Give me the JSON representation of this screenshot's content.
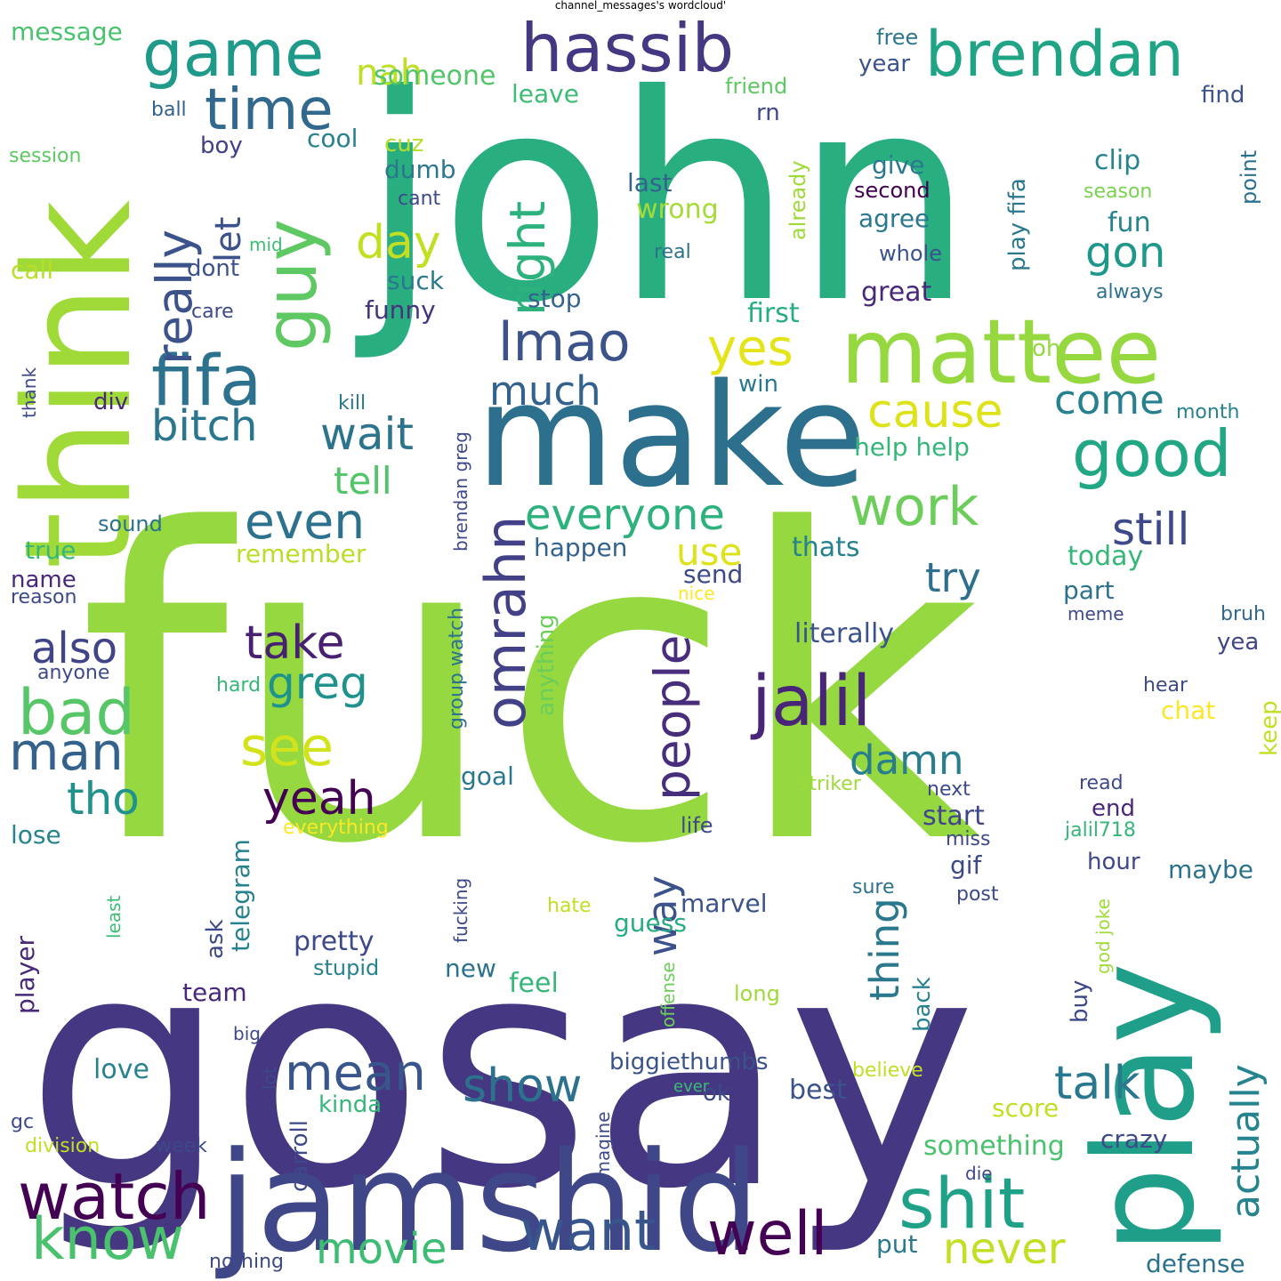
{
  "title": "channel_messages's wordcloud'",
  "words": [
    {
      "text": "fuck",
      "color": "#95d840"
    },
    {
      "text": "gosay",
      "color": "#453781"
    },
    {
      "text": "john",
      "color": "#29af7f"
    },
    {
      "text": "think",
      "color": "#a0da39"
    },
    {
      "text": "make",
      "color": "#2d708e"
    },
    {
      "text": "jamshid",
      "color": "#3f4788"
    },
    {
      "text": "play",
      "color": "#1f9e89"
    },
    {
      "text": "mattee",
      "color": "#95d840"
    },
    {
      "text": "hassib",
      "color": "#453781"
    },
    {
      "text": "brendan",
      "color": "#20a486"
    },
    {
      "text": "game",
      "color": "#1f9a8a"
    },
    {
      "text": "guy",
      "color": "#5ec962"
    },
    {
      "text": "time",
      "color": "#31688e"
    },
    {
      "text": "fifa",
      "color": "#2c728e"
    },
    {
      "text": "jalil",
      "color": "#482576"
    },
    {
      "text": "good",
      "color": "#22a785"
    },
    {
      "text": "watch",
      "color": "#440154"
    },
    {
      "text": "know",
      "color": "#4ac16d"
    },
    {
      "text": "shit",
      "color": "#1fa188"
    },
    {
      "text": "well",
      "color": "#440154"
    },
    {
      "text": "want",
      "color": "#39568c"
    },
    {
      "text": "omrahn",
      "color": "#424086"
    },
    {
      "text": "people",
      "color": "#472d7b"
    },
    {
      "text": "bad",
      "color": "#56c667"
    },
    {
      "text": "man",
      "color": "#33638d"
    },
    {
      "text": "see",
      "color": "#d2e21b"
    },
    {
      "text": "right",
      "color": "#2db27d"
    },
    {
      "text": "lmao",
      "color": "#3b528b"
    },
    {
      "text": "really",
      "color": "#3b528b"
    },
    {
      "text": "work",
      "color": "#6ccd5a"
    },
    {
      "text": "mean",
      "color": "#39568c"
    },
    {
      "text": "even",
      "color": "#2c728e"
    },
    {
      "text": "everyone",
      "color": "#2db27d"
    },
    {
      "text": "cause",
      "color": "#dde318"
    },
    {
      "text": "yes",
      "color": "#e5e419"
    },
    {
      "text": "day",
      "color": "#c2df23"
    },
    {
      "text": "bitch",
      "color": "#2a768e"
    },
    {
      "text": "wait",
      "color": "#2c738e"
    },
    {
      "text": "take",
      "color": "#482071"
    },
    {
      "text": "greg",
      "color": "#20928c"
    },
    {
      "text": "also",
      "color": "#414487"
    },
    {
      "text": "yeah",
      "color": "#440154"
    },
    {
      "text": "tho",
      "color": "#21918c"
    },
    {
      "text": "movie",
      "color": "#3dbc74"
    },
    {
      "text": "show",
      "color": "#2c728e"
    },
    {
      "text": "talk",
      "color": "#2a788e"
    },
    {
      "text": "actually",
      "color": "#25848e"
    },
    {
      "text": "never",
      "color": "#c2df23"
    },
    {
      "text": "still",
      "color": "#3e4989"
    },
    {
      "text": "try",
      "color": "#2e6f8e"
    },
    {
      "text": "damn",
      "color": "#287d8e"
    },
    {
      "text": "come",
      "color": "#27808e"
    },
    {
      "text": "thing",
      "color": "#2a788e"
    },
    {
      "text": "way",
      "color": "#3b528b"
    },
    {
      "text": "much",
      "color": "#33638d"
    },
    {
      "text": "tell",
      "color": "#52c569"
    },
    {
      "text": "use",
      "color": "#dde318"
    },
    {
      "text": "nah",
      "color": "#bddf26"
    },
    {
      "text": "let",
      "color": "#3b528b"
    },
    {
      "text": "gon",
      "color": "#1f988b"
    },
    {
      "text": "message",
      "color": "#4ac16d"
    },
    {
      "text": "someone",
      "color": "#52c569"
    },
    {
      "text": "leave",
      "color": "#3dbc74"
    },
    {
      "text": "year",
      "color": "#3b528b"
    },
    {
      "text": "free",
      "color": "#2a788e"
    },
    {
      "text": "friend",
      "color": "#5ec962"
    },
    {
      "text": "find",
      "color": "#3b528b"
    },
    {
      "text": "rn",
      "color": "#3e4989"
    },
    {
      "text": "ball",
      "color": "#33638d"
    },
    {
      "text": "boy",
      "color": "#424086"
    },
    {
      "text": "cool",
      "color": "#27808e"
    },
    {
      "text": "session",
      "color": "#5ec962"
    },
    {
      "text": "cuz",
      "color": "#b5de2b"
    },
    {
      "text": "dumb",
      "color": "#2a788e"
    },
    {
      "text": "last",
      "color": "#33638d"
    },
    {
      "text": "give",
      "color": "#2a788e"
    },
    {
      "text": "clip",
      "color": "#25848e"
    },
    {
      "text": "cant",
      "color": "#3e4989"
    },
    {
      "text": "second",
      "color": "#440154"
    },
    {
      "text": "season",
      "color": "#7ad151"
    },
    {
      "text": "wrong",
      "color": "#a5db36"
    },
    {
      "text": "agree",
      "color": "#2a788e"
    },
    {
      "text": "fun",
      "color": "#25848e"
    },
    {
      "text": "mid",
      "color": "#3dbc74"
    },
    {
      "text": "dont",
      "color": "#3b528b"
    },
    {
      "text": "real",
      "color": "#2c728e"
    },
    {
      "text": "whole",
      "color": "#3b528b"
    },
    {
      "text": "call",
      "color": "#b8de29"
    },
    {
      "text": "suck",
      "color": "#2a788e"
    },
    {
      "text": "stop",
      "color": "#33638d"
    },
    {
      "text": "great",
      "color": "#482878"
    },
    {
      "text": "always",
      "color": "#2c728e"
    },
    {
      "text": "care",
      "color": "#3e4989"
    },
    {
      "text": "funny",
      "color": "#46337e"
    },
    {
      "text": "first",
      "color": "#27ad81"
    },
    {
      "text": "oh",
      "color": "#95d840"
    },
    {
      "text": "thank",
      "color": "#3e4989"
    },
    {
      "text": "kill",
      "color": "#2a788e"
    },
    {
      "text": "win",
      "color": "#2a788e"
    },
    {
      "text": "div",
      "color": "#482878"
    },
    {
      "text": "month",
      "color": "#26828e"
    },
    {
      "text": "help help",
      "color": "#35b779"
    },
    {
      "text": "sound",
      "color": "#2c728e"
    },
    {
      "text": "true",
      "color": "#35b779"
    },
    {
      "text": "remember",
      "color": "#b8de29"
    },
    {
      "text": "happen",
      "color": "#33638d"
    },
    {
      "text": "thats",
      "color": "#26828e"
    },
    {
      "text": "today",
      "color": "#35b779"
    },
    {
      "text": "send",
      "color": "#3e4989"
    },
    {
      "text": "nice",
      "color": "#fde725"
    },
    {
      "text": "name",
      "color": "#482878"
    },
    {
      "text": "reason",
      "color": "#3e4989"
    },
    {
      "text": "part",
      "color": "#2c728e"
    },
    {
      "text": "meme",
      "color": "#3e4989"
    },
    {
      "text": "bruh",
      "color": "#31688e"
    },
    {
      "text": "literally",
      "color": "#3b528b"
    },
    {
      "text": "yea",
      "color": "#404688"
    },
    {
      "text": "anyone",
      "color": "#3e4989"
    },
    {
      "text": "hard",
      "color": "#35b779"
    },
    {
      "text": "hear",
      "color": "#3e4989"
    },
    {
      "text": "chat",
      "color": "#fde725"
    },
    {
      "text": "keep",
      "color": "#c2df23"
    },
    {
      "text": "goal",
      "color": "#2a788e"
    },
    {
      "text": "striker",
      "color": "#9fda3a"
    },
    {
      "text": "next",
      "color": "#3e4989"
    },
    {
      "text": "read",
      "color": "#3e4989"
    },
    {
      "text": "start",
      "color": "#404688"
    },
    {
      "text": "end",
      "color": "#482878"
    },
    {
      "text": "lose",
      "color": "#25848e"
    },
    {
      "text": "everything",
      "color": "#fde725"
    },
    {
      "text": "life",
      "color": "#3e4989"
    },
    {
      "text": "miss",
      "color": "#3e4989"
    },
    {
      "text": "jalil718",
      "color": "#35b779"
    },
    {
      "text": "gif",
      "color": "#3e4989"
    },
    {
      "text": "hour",
      "color": "#3e4989"
    },
    {
      "text": "maybe",
      "color": "#2c728e"
    },
    {
      "text": "sure",
      "color": "#2c728e"
    },
    {
      "text": "post",
      "color": "#3e4989"
    },
    {
      "text": "hate",
      "color": "#c2df23"
    },
    {
      "text": "marvel",
      "color": "#3b528b"
    },
    {
      "text": "guess",
      "color": "#27ad81"
    },
    {
      "text": "pretty",
      "color": "#3e4989"
    },
    {
      "text": "stupid",
      "color": "#26828e"
    },
    {
      "text": "new",
      "color": "#2c728e"
    },
    {
      "text": "feel",
      "color": "#35b779"
    },
    {
      "text": "team",
      "color": "#482878"
    },
    {
      "text": "long",
      "color": "#a0da39"
    },
    {
      "text": "big",
      "color": "#3e4989"
    },
    {
      "text": "biggiethumbs",
      "color": "#3b528b"
    },
    {
      "text": "love",
      "color": "#26828e"
    },
    {
      "text": "ok",
      "color": "#3e4989"
    },
    {
      "text": "best",
      "color": "#3b528b"
    },
    {
      "text": "believe",
      "color": "#c2df23"
    },
    {
      "text": "ever",
      "color": "#3dbc74"
    },
    {
      "text": "kinda",
      "color": "#35b779"
    },
    {
      "text": "score",
      "color": "#c2df23"
    },
    {
      "text": "something",
      "color": "#4ac16d"
    },
    {
      "text": "crazy",
      "color": "#3e4989"
    },
    {
      "text": "division",
      "color": "#c2df23"
    },
    {
      "text": "week",
      "color": "#3e4989"
    },
    {
      "text": "gc",
      "color": "#3e4989"
    },
    {
      "text": "die",
      "color": "#3e4989"
    },
    {
      "text": "put",
      "color": "#2a788e"
    },
    {
      "text": "nothing",
      "color": "#3e4989"
    },
    {
      "text": "defense",
      "color": "#2c728e"
    },
    {
      "text": "player",
      "color": "#482878"
    },
    {
      "text": "least",
      "color": "#3dbc74"
    },
    {
      "text": "fucking",
      "color": "#3e4989"
    },
    {
      "text": "ask",
      "color": "#3e4989"
    },
    {
      "text": "telegram",
      "color": "#26828e"
    },
    {
      "text": "carroll",
      "color": "#3e4989"
    },
    {
      "text": "lot",
      "color": "#3e4989"
    },
    {
      "text": "imagine",
      "color": "#3e4989"
    },
    {
      "text": "offense",
      "color": "#6ccd5a"
    },
    {
      "text": "back",
      "color": "#26828e"
    },
    {
      "text": "buy",
      "color": "#3e4989"
    },
    {
      "text": "god joke",
      "color": "#9fda3a"
    },
    {
      "text": "group watch",
      "color": "#2c728e"
    },
    {
      "text": "brendan greg",
      "color": "#3e4989"
    },
    {
      "text": "anything",
      "color": "#6ccd5a"
    },
    {
      "text": "already",
      "color": "#a0da39"
    },
    {
      "text": "play fifa",
      "color": "#2a788e"
    },
    {
      "text": "point",
      "color": "#2c728e"
    }
  ]
}
